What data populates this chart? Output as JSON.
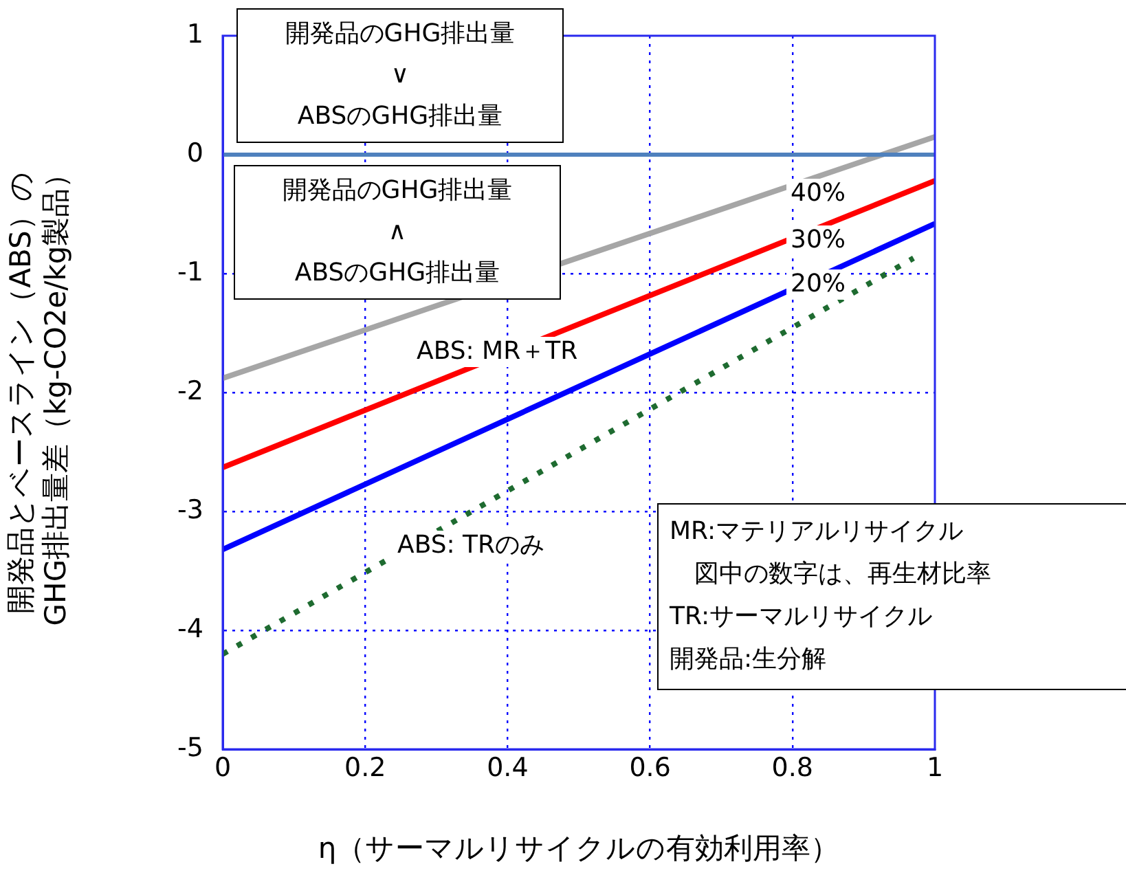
{
  "chart_data": {
    "type": "line",
    "xlabel": "η（サーマルリサイクルの有効利用率）",
    "ylabel": "開発品とベースライン（ABS）の\nGHG排出量差（kg-CO2e/kg製品）",
    "xlim": [
      0,
      1
    ],
    "xticks": [
      0,
      0.2,
      0.4,
      0.6,
      0.8,
      1
    ],
    "ylim": [
      -5,
      1
    ],
    "yticks": [
      -5,
      -4,
      -3,
      -2,
      -1,
      0,
      1
    ],
    "grid": true,
    "legend": false,
    "marker": "none",
    "series": [
      {
        "x": [
          0,
          1
        ],
        "values": [
          -1.88,
          0.15
        ],
        "color": "#a6a6a6",
        "line_style": "solid"
      },
      {
        "x": [
          0,
          1
        ],
        "values": [
          -2.63,
          -0.22
        ],
        "color": "#ff0000",
        "line_style": "solid"
      },
      {
        "x": [
          0,
          1
        ],
        "values": [
          -3.32,
          -0.58
        ],
        "color": "#0000ff",
        "line_style": "solid"
      },
      {
        "x": [
          0,
          0.97
        ],
        "values": [
          -4.2,
          -0.87
        ],
        "color": "#1e6b30",
        "line_style": "dotted"
      }
    ],
    "ref_lines": [
      {
        "axis": "y",
        "value": 0,
        "color": "#4f81bd"
      }
    ],
    "annotations": [
      "開発品のGHG排出量\n∨\nABSのGHG排出量",
      "開発品のGHG排出量\n∧\nABSのGHG排出量",
      "MR:マテリアルリサイクル",
      "図中の数字は、再生材比率",
      "TR:サーマルリサイクル",
      "開発品:生分解",
      "40%",
      "30%",
      "20%",
      "ABS: MR＋TR",
      "ABS: TRのみ"
    ]
  }
}
